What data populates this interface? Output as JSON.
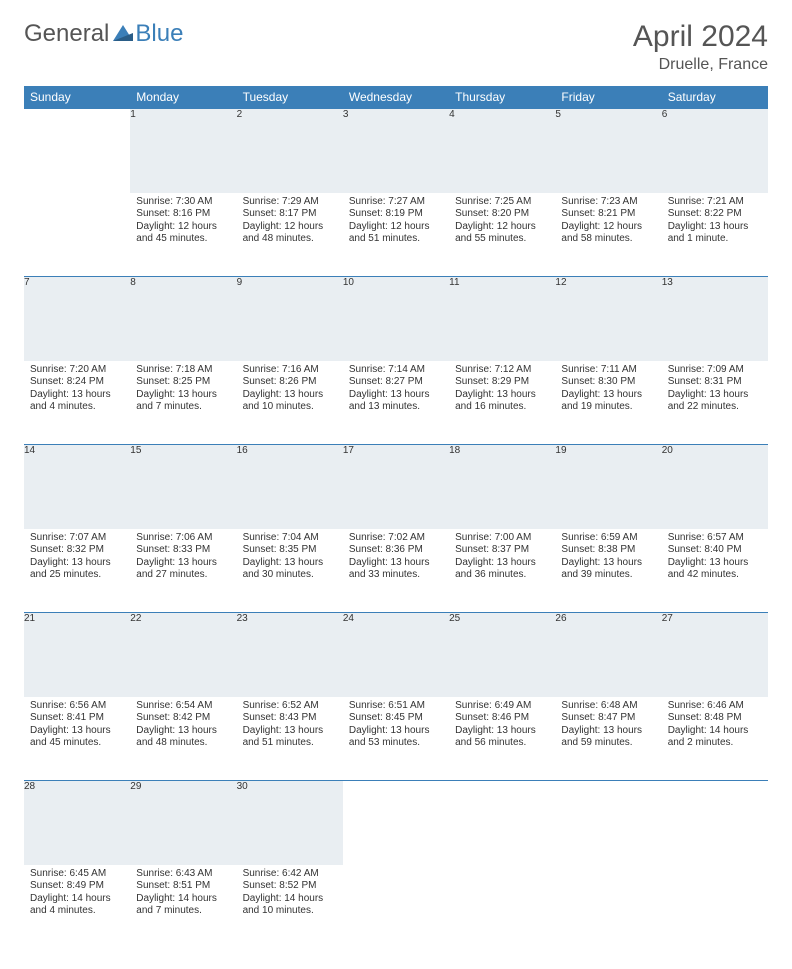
{
  "brand": {
    "part1": "General",
    "part2": "Blue"
  },
  "title": "April 2024",
  "location": "Druelle, France",
  "colors": {
    "header_bg": "#3b7fb8",
    "header_text": "#ffffff",
    "daynum_bg": "#e9eef2",
    "daynum_text": "#6b6f73",
    "row_divider": "#3b7fb8",
    "body_text": "#333333",
    "page_bg": "#ffffff"
  },
  "typography": {
    "title_fontsize": 30,
    "location_fontsize": 16,
    "weekday_fontsize": 12,
    "daynum_fontsize": 11,
    "cell_fontsize": 10
  },
  "weekdays": [
    "Sunday",
    "Monday",
    "Tuesday",
    "Wednesday",
    "Thursday",
    "Friday",
    "Saturday"
  ],
  "weeks": [
    [
      null,
      {
        "n": "1",
        "sr": "Sunrise: 7:30 AM",
        "ss": "Sunset: 8:16 PM",
        "dl": "Daylight: 12 hours and 45 minutes."
      },
      {
        "n": "2",
        "sr": "Sunrise: 7:29 AM",
        "ss": "Sunset: 8:17 PM",
        "dl": "Daylight: 12 hours and 48 minutes."
      },
      {
        "n": "3",
        "sr": "Sunrise: 7:27 AM",
        "ss": "Sunset: 8:19 PM",
        "dl": "Daylight: 12 hours and 51 minutes."
      },
      {
        "n": "4",
        "sr": "Sunrise: 7:25 AM",
        "ss": "Sunset: 8:20 PM",
        "dl": "Daylight: 12 hours and 55 minutes."
      },
      {
        "n": "5",
        "sr": "Sunrise: 7:23 AM",
        "ss": "Sunset: 8:21 PM",
        "dl": "Daylight: 12 hours and 58 minutes."
      },
      {
        "n": "6",
        "sr": "Sunrise: 7:21 AM",
        "ss": "Sunset: 8:22 PM",
        "dl": "Daylight: 13 hours and 1 minute."
      }
    ],
    [
      {
        "n": "7",
        "sr": "Sunrise: 7:20 AM",
        "ss": "Sunset: 8:24 PM",
        "dl": "Daylight: 13 hours and 4 minutes."
      },
      {
        "n": "8",
        "sr": "Sunrise: 7:18 AM",
        "ss": "Sunset: 8:25 PM",
        "dl": "Daylight: 13 hours and 7 minutes."
      },
      {
        "n": "9",
        "sr": "Sunrise: 7:16 AM",
        "ss": "Sunset: 8:26 PM",
        "dl": "Daylight: 13 hours and 10 minutes."
      },
      {
        "n": "10",
        "sr": "Sunrise: 7:14 AM",
        "ss": "Sunset: 8:27 PM",
        "dl": "Daylight: 13 hours and 13 minutes."
      },
      {
        "n": "11",
        "sr": "Sunrise: 7:12 AM",
        "ss": "Sunset: 8:29 PM",
        "dl": "Daylight: 13 hours and 16 minutes."
      },
      {
        "n": "12",
        "sr": "Sunrise: 7:11 AM",
        "ss": "Sunset: 8:30 PM",
        "dl": "Daylight: 13 hours and 19 minutes."
      },
      {
        "n": "13",
        "sr": "Sunrise: 7:09 AM",
        "ss": "Sunset: 8:31 PM",
        "dl": "Daylight: 13 hours and 22 minutes."
      }
    ],
    [
      {
        "n": "14",
        "sr": "Sunrise: 7:07 AM",
        "ss": "Sunset: 8:32 PM",
        "dl": "Daylight: 13 hours and 25 minutes."
      },
      {
        "n": "15",
        "sr": "Sunrise: 7:06 AM",
        "ss": "Sunset: 8:33 PM",
        "dl": "Daylight: 13 hours and 27 minutes."
      },
      {
        "n": "16",
        "sr": "Sunrise: 7:04 AM",
        "ss": "Sunset: 8:35 PM",
        "dl": "Daylight: 13 hours and 30 minutes."
      },
      {
        "n": "17",
        "sr": "Sunrise: 7:02 AM",
        "ss": "Sunset: 8:36 PM",
        "dl": "Daylight: 13 hours and 33 minutes."
      },
      {
        "n": "18",
        "sr": "Sunrise: 7:00 AM",
        "ss": "Sunset: 8:37 PM",
        "dl": "Daylight: 13 hours and 36 minutes."
      },
      {
        "n": "19",
        "sr": "Sunrise: 6:59 AM",
        "ss": "Sunset: 8:38 PM",
        "dl": "Daylight: 13 hours and 39 minutes."
      },
      {
        "n": "20",
        "sr": "Sunrise: 6:57 AM",
        "ss": "Sunset: 8:40 PM",
        "dl": "Daylight: 13 hours and 42 minutes."
      }
    ],
    [
      {
        "n": "21",
        "sr": "Sunrise: 6:56 AM",
        "ss": "Sunset: 8:41 PM",
        "dl": "Daylight: 13 hours and 45 minutes."
      },
      {
        "n": "22",
        "sr": "Sunrise: 6:54 AM",
        "ss": "Sunset: 8:42 PM",
        "dl": "Daylight: 13 hours and 48 minutes."
      },
      {
        "n": "23",
        "sr": "Sunrise: 6:52 AM",
        "ss": "Sunset: 8:43 PM",
        "dl": "Daylight: 13 hours and 51 minutes."
      },
      {
        "n": "24",
        "sr": "Sunrise: 6:51 AM",
        "ss": "Sunset: 8:45 PM",
        "dl": "Daylight: 13 hours and 53 minutes."
      },
      {
        "n": "25",
        "sr": "Sunrise: 6:49 AM",
        "ss": "Sunset: 8:46 PM",
        "dl": "Daylight: 13 hours and 56 minutes."
      },
      {
        "n": "26",
        "sr": "Sunrise: 6:48 AM",
        "ss": "Sunset: 8:47 PM",
        "dl": "Daylight: 13 hours and 59 minutes."
      },
      {
        "n": "27",
        "sr": "Sunrise: 6:46 AM",
        "ss": "Sunset: 8:48 PM",
        "dl": "Daylight: 14 hours and 2 minutes."
      }
    ],
    [
      {
        "n": "28",
        "sr": "Sunrise: 6:45 AM",
        "ss": "Sunset: 8:49 PM",
        "dl": "Daylight: 14 hours and 4 minutes."
      },
      {
        "n": "29",
        "sr": "Sunrise: 6:43 AM",
        "ss": "Sunset: 8:51 PM",
        "dl": "Daylight: 14 hours and 7 minutes."
      },
      {
        "n": "30",
        "sr": "Sunrise: 6:42 AM",
        "ss": "Sunset: 8:52 PM",
        "dl": "Daylight: 14 hours and 10 minutes."
      },
      null,
      null,
      null,
      null
    ]
  ]
}
